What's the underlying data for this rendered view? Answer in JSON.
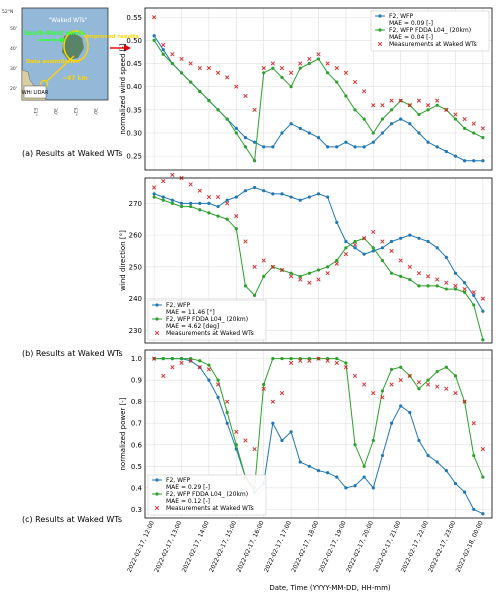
{
  "inset_map": {
    "callout": "\"Waked WTs\"",
    "south_west_winds": "South-West winds",
    "improved_results": "Improved results",
    "data_assimilation": "Data assimilation",
    "lidar": "WHi LIDAR",
    "distance": "~47 km",
    "lat_labels": [
      "52°N",
      "50'",
      "40'",
      "30'",
      "20'"
    ],
    "lon_labels": [
      "E1°",
      "30'",
      "E2°",
      "30'"
    ]
  },
  "panel_captions": [
    "(a) Results at Waked WTs",
    "(b) Results at Waked WTs",
    "(c) Results at Waked WTs"
  ],
  "colors": {
    "wfp": "#1f77b4",
    "fdda": "#2ca02c",
    "meas": "#d62728"
  },
  "shared_x": {
    "xlabel": "Date, Time (YYYY-MM-DD, HH-mm)",
    "ticks": [
      "2022-02-17, 12:00",
      "2022-02-17, 13:00",
      "2022-02-17, 14:00",
      "2022-02-17, 15:00",
      "2022-02-17, 16:00",
      "2022-02-17, 17:00",
      "2022-02-17, 18:00",
      "2022-02-17, 19:00",
      "2022-02-17, 20:00",
      "2022-02-17, 21:00",
      "2022-02-17, 22:00",
      "2022-02-17, 23:00",
      "2022-02-18, 00:00"
    ],
    "xlim": [
      "2022-02-17, 11:40",
      "2022-02-18, 00:20"
    ]
  },
  "chart_data": [
    {
      "type": "line",
      "ylabel": "normalized wind speed [-]",
      "ylim": [
        0.22,
        0.57
      ],
      "yticks": [
        0.25,
        0.3,
        0.35,
        0.4,
        0.45,
        0.5,
        0.55
      ],
      "ytick_labels": [
        "0.25",
        "0.30",
        "0.35",
        "0.40",
        "0.45",
        "0.50",
        "0.55"
      ],
      "grid": true,
      "legend_position": "top-right",
      "series": [
        {
          "name": "F2, WFP",
          "mae": "MAE = 0.09 [-]",
          "marker": "dot",
          "x": [
            "12:00",
            "12:20",
            "12:40",
            "13:00",
            "13:20",
            "13:40",
            "14:00",
            "14:20",
            "14:40",
            "15:00",
            "15:20",
            "15:40",
            "16:00",
            "16:20",
            "16:40",
            "17:00",
            "17:20",
            "17:40",
            "18:00",
            "18:20",
            "18:40",
            "19:00",
            "19:20",
            "19:40",
            "20:00",
            "20:20",
            "20:40",
            "21:00",
            "21:20",
            "21:40",
            "22:00",
            "22:20",
            "22:40",
            "23:00",
            "23:20",
            "23:40",
            "00:00"
          ],
          "values": [
            0.51,
            0.48,
            0.45,
            0.43,
            0.41,
            0.39,
            0.37,
            0.35,
            0.33,
            0.31,
            0.29,
            0.28,
            0.27,
            0.27,
            0.3,
            0.32,
            0.31,
            0.3,
            0.29,
            0.27,
            0.27,
            0.28,
            0.27,
            0.27,
            0.28,
            0.3,
            0.32,
            0.33,
            0.32,
            0.3,
            0.28,
            0.27,
            0.26,
            0.25,
            0.24,
            0.24,
            0.24
          ]
        },
        {
          "name": "F2, WFP FDDA L04_ (20km)",
          "mae": "MAE = 0.04 [-]",
          "marker": "dot",
          "x": [
            "12:00",
            "12:20",
            "12:40",
            "13:00",
            "13:20",
            "13:40",
            "14:00",
            "14:20",
            "14:40",
            "15:00",
            "15:20",
            "15:40",
            "16:00",
            "16:20",
            "16:40",
            "17:00",
            "17:20",
            "17:40",
            "18:00",
            "18:20",
            "18:40",
            "19:00",
            "19:20",
            "19:40",
            "20:00",
            "20:20",
            "20:40",
            "21:00",
            "21:20",
            "21:40",
            "22:00",
            "22:20",
            "22:40",
            "23:00",
            "23:20",
            "23:40",
            "00:00"
          ],
          "values": [
            0.5,
            0.47,
            0.45,
            0.43,
            0.41,
            0.39,
            0.37,
            0.35,
            0.33,
            0.3,
            0.27,
            0.24,
            0.43,
            0.44,
            0.42,
            0.4,
            0.44,
            0.45,
            0.46,
            0.43,
            0.41,
            0.38,
            0.35,
            0.33,
            0.3,
            0.33,
            0.35,
            0.37,
            0.36,
            0.34,
            0.35,
            0.36,
            0.35,
            0.33,
            0.31,
            0.3,
            0.29
          ]
        },
        {
          "name": "Measurements at Waked WTs",
          "mae": "",
          "marker": "x",
          "x": [
            "12:00",
            "12:20",
            "12:40",
            "13:00",
            "13:20",
            "13:40",
            "14:00",
            "14:20",
            "14:40",
            "15:00",
            "15:20",
            "15:40",
            "16:00",
            "16:20",
            "16:40",
            "17:00",
            "17:20",
            "17:40",
            "18:00",
            "18:20",
            "18:40",
            "19:00",
            "19:20",
            "19:40",
            "20:00",
            "20:20",
            "20:40",
            "21:00",
            "21:20",
            "21:40",
            "22:00",
            "22:20",
            "22:40",
            "23:00",
            "23:20",
            "23:40",
            "00:00"
          ],
          "values": [
            0.55,
            0.49,
            0.47,
            0.46,
            0.45,
            0.44,
            0.44,
            0.43,
            0.42,
            0.4,
            0.38,
            0.35,
            0.44,
            0.45,
            0.44,
            0.43,
            0.45,
            0.46,
            0.47,
            0.45,
            0.44,
            0.43,
            0.41,
            0.39,
            0.36,
            0.36,
            0.37,
            0.37,
            0.36,
            0.37,
            0.36,
            0.37,
            0.35,
            0.34,
            0.33,
            0.32,
            0.31
          ]
        }
      ]
    },
    {
      "type": "line",
      "ylabel": "wind direction [°]",
      "ylim": [
        226,
        278
      ],
      "yticks": [
        230,
        240,
        250,
        260,
        270
      ],
      "ytick_labels": [
        "230",
        "240",
        "250",
        "260",
        "270"
      ],
      "grid": true,
      "legend_position": "bottom-left",
      "series": [
        {
          "name": "F2, WFP",
          "mae": "MAE = 11.46 [°]",
          "marker": "dot",
          "x": [
            "12:00",
            "12:20",
            "12:40",
            "13:00",
            "13:20",
            "13:40",
            "14:00",
            "14:20",
            "14:40",
            "15:00",
            "15:20",
            "15:40",
            "16:00",
            "16:20",
            "16:40",
            "17:00",
            "17:20",
            "17:40",
            "18:00",
            "18:20",
            "18:40",
            "19:00",
            "19:20",
            "19:40",
            "20:00",
            "20:20",
            "20:40",
            "21:00",
            "21:20",
            "21:40",
            "22:00",
            "22:20",
            "22:40",
            "23:00",
            "23:20",
            "23:40",
            "00:00"
          ],
          "values": [
            273,
            272,
            271,
            270,
            270,
            270,
            270,
            269,
            271,
            272,
            274,
            275,
            274,
            273,
            273,
            272,
            271,
            272,
            273,
            272,
            264,
            258,
            256,
            254,
            255,
            256,
            258,
            259,
            260,
            259,
            258,
            256,
            253,
            248,
            245,
            241,
            236
          ]
        },
        {
          "name": "F2, WFP FDDA L04_ (20km)",
          "mae": "MAE = 4.62 [deg]",
          "marker": "dot",
          "x": [
            "12:00",
            "12:20",
            "12:40",
            "13:00",
            "13:20",
            "13:40",
            "14:00",
            "14:20",
            "14:40",
            "15:00",
            "15:20",
            "15:40",
            "16:00",
            "16:20",
            "16:40",
            "17:00",
            "17:20",
            "17:40",
            "18:00",
            "18:20",
            "18:40",
            "19:00",
            "19:20",
            "19:40",
            "20:00",
            "20:20",
            "20:40",
            "21:00",
            "21:20",
            "21:40",
            "22:00",
            "22:20",
            "22:40",
            "23:00",
            "23:20",
            "23:40",
            "00:00"
          ],
          "values": [
            272,
            271,
            270,
            269,
            269,
            268,
            267,
            266,
            265,
            262,
            244,
            241,
            247,
            250,
            249,
            248,
            247,
            248,
            249,
            250,
            252,
            256,
            258,
            259,
            256,
            252,
            248,
            247,
            246,
            244,
            244,
            244,
            243,
            243,
            242,
            238,
            227
          ]
        },
        {
          "name": "Measurements at Waked WTs",
          "mae": "",
          "marker": "x",
          "x": [
            "12:00",
            "12:20",
            "12:40",
            "13:00",
            "13:20",
            "13:40",
            "14:00",
            "14:20",
            "14:40",
            "15:00",
            "15:20",
            "15:40",
            "16:00",
            "16:20",
            "16:40",
            "17:00",
            "17:20",
            "17:40",
            "18:00",
            "18:20",
            "18:40",
            "19:00",
            "19:20",
            "19:40",
            "20:00",
            "20:20",
            "20:40",
            "21:00",
            "21:20",
            "21:40",
            "22:00",
            "22:20",
            "22:40",
            "23:00",
            "23:20",
            "23:40",
            "00:00"
          ],
          "values": [
            275,
            277,
            279,
            278,
            276,
            274,
            272,
            272,
            270,
            266,
            258,
            250,
            252,
            250,
            249,
            247,
            246,
            245,
            246,
            248,
            251,
            254,
            257,
            259,
            261,
            258,
            255,
            252,
            250,
            248,
            247,
            246,
            245,
            244,
            243,
            242,
            240
          ]
        }
      ]
    },
    {
      "type": "line",
      "ylabel": "normalized power [-]",
      "ylim": [
        0.26,
        1.04
      ],
      "yticks": [
        0.3,
        0.4,
        0.5,
        0.6,
        0.7,
        0.8,
        0.9,
        1.0
      ],
      "ytick_labels": [
        "0.3",
        "0.4",
        "0.5",
        "0.6",
        "0.7",
        "0.8",
        "0.9",
        "1.0"
      ],
      "grid": true,
      "legend_position": "bottom-left",
      "series": [
        {
          "name": "F2, WFP",
          "mae": "MAE = 0.29 [-]",
          "marker": "dot",
          "x": [
            "12:00",
            "12:20",
            "12:40",
            "13:00",
            "13:20",
            "13:40",
            "14:00",
            "14:20",
            "14:40",
            "15:00",
            "15:20",
            "15:40",
            "16:00",
            "16:20",
            "16:40",
            "17:00",
            "17:20",
            "17:40",
            "18:00",
            "18:20",
            "18:40",
            "19:00",
            "19:20",
            "19:40",
            "20:00",
            "20:20",
            "20:40",
            "21:00",
            "21:20",
            "21:40",
            "22:00",
            "22:20",
            "22:40",
            "23:00",
            "23:20",
            "23:40",
            "00:00"
          ],
          "values": [
            1.0,
            1.0,
            1.0,
            1.0,
            0.99,
            0.96,
            0.9,
            0.82,
            0.7,
            0.58,
            0.45,
            0.38,
            0.42,
            0.7,
            0.62,
            0.66,
            0.52,
            0.5,
            0.48,
            0.47,
            0.45,
            0.4,
            0.41,
            0.45,
            0.4,
            0.55,
            0.7,
            0.78,
            0.75,
            0.62,
            0.55,
            0.52,
            0.48,
            0.42,
            0.38,
            0.3,
            0.28
          ]
        },
        {
          "name": "F2, WFP FDDA L04_ (20km)",
          "mae": "MAE = 0.12 [-]",
          "marker": "dot",
          "x": [
            "12:00",
            "12:20",
            "12:40",
            "13:00",
            "13:20",
            "13:40",
            "14:00",
            "14:20",
            "14:40",
            "15:00",
            "15:20",
            "15:40",
            "16:00",
            "16:20",
            "16:40",
            "17:00",
            "17:20",
            "17:40",
            "18:00",
            "18:20",
            "18:40",
            "19:00",
            "19:20",
            "19:40",
            "20:00",
            "20:20",
            "20:40",
            "21:00",
            "21:20",
            "21:40",
            "22:00",
            "22:20",
            "22:40",
            "23:00",
            "23:20",
            "23:40",
            "00:00"
          ],
          "values": [
            1.0,
            1.0,
            1.0,
            1.0,
            1.0,
            0.99,
            0.97,
            0.9,
            0.75,
            0.6,
            0.45,
            0.4,
            0.88,
            1.0,
            1.0,
            1.0,
            1.0,
            1.0,
            1.0,
            1.0,
            1.0,
            0.98,
            0.6,
            0.5,
            0.62,
            0.85,
            0.95,
            0.96,
            0.92,
            0.86,
            0.9,
            0.94,
            0.96,
            0.92,
            0.8,
            0.55,
            0.45
          ]
        },
        {
          "name": "Measurements at Waked WTs",
          "mae": "",
          "marker": "x",
          "x": [
            "12:00",
            "12:20",
            "12:40",
            "13:00",
            "13:20",
            "13:40",
            "14:00",
            "14:20",
            "14:40",
            "15:00",
            "15:20",
            "15:40",
            "16:00",
            "16:20",
            "16:40",
            "17:00",
            "17:20",
            "17:40",
            "18:00",
            "18:20",
            "18:40",
            "19:00",
            "19:20",
            "19:40",
            "20:00",
            "20:20",
            "20:40",
            "21:00",
            "21:20",
            "21:40",
            "22:00",
            "22:20",
            "22:40",
            "23:00",
            "23:20",
            "23:40",
            "00:00"
          ],
          "values": [
            1.0,
            0.92,
            0.96,
            0.98,
            0.99,
            0.96,
            0.95,
            0.88,
            0.8,
            0.66,
            0.62,
            0.58,
            0.86,
            0.8,
            0.84,
            0.98,
            0.99,
            0.99,
            1.0,
            0.99,
            0.98,
            0.96,
            0.92,
            0.88,
            0.84,
            0.82,
            0.88,
            0.9,
            0.92,
            0.89,
            0.88,
            0.87,
            0.86,
            0.84,
            0.8,
            0.7,
            0.58
          ]
        }
      ]
    }
  ]
}
